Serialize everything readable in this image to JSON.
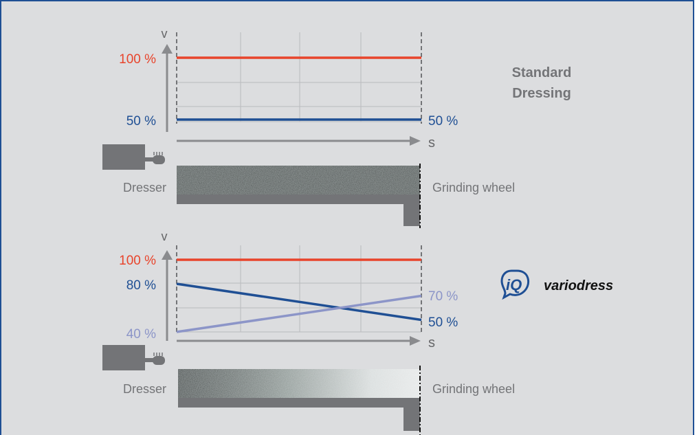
{
  "colors": {
    "background": "#dcdddf",
    "frame": "#1f4f94",
    "red": "#e8442b",
    "dark_blue": "#1f4f94",
    "light_blue": "#8c95c8",
    "grey": "#737477",
    "grid": "#b9babd"
  },
  "panels": [
    {
      "axis_y_label": "v",
      "axis_x_label": "s",
      "left_labels": {
        "top": "100 %",
        "bottom": "50 %"
      },
      "right_labels": {
        "bottom": "50 %"
      },
      "title_line1": "Standard",
      "title_line2": "Dressing",
      "dresser_label": "Dresser",
      "wheel_label": "Grinding wheel",
      "wheel_gradient": "uniform-dark",
      "chart_data": {
        "type": "line",
        "x": [
          0,
          1
        ],
        "series": [
          {
            "values": [
              100,
              100
            ],
            "color": "#e8442b"
          },
          {
            "values": [
              50,
              50
            ],
            "color": "#1f4f94"
          }
        ]
      }
    },
    {
      "axis_y_label": "v",
      "axis_x_label": "s",
      "left_labels": {
        "top": "100 %",
        "middle": "80 %",
        "bottom": "40 %"
      },
      "right_labels": {
        "middle": "70 %",
        "bottom": "50 %"
      },
      "logo_icon": "iq-logo-icon",
      "logo_text": "variodress",
      "dresser_label": "Dresser",
      "wheel_label": "Grinding wheel",
      "wheel_gradient": "dark-to-light",
      "chart_data": {
        "type": "line",
        "x": [
          0,
          1
        ],
        "series": [
          {
            "values": [
              100,
              100
            ],
            "color": "#e8442b"
          },
          {
            "values": [
              80,
              50
            ],
            "color": "#1f4f94"
          },
          {
            "values": [
              40,
              70
            ],
            "color": "#8c95c8"
          }
        ]
      }
    }
  ]
}
